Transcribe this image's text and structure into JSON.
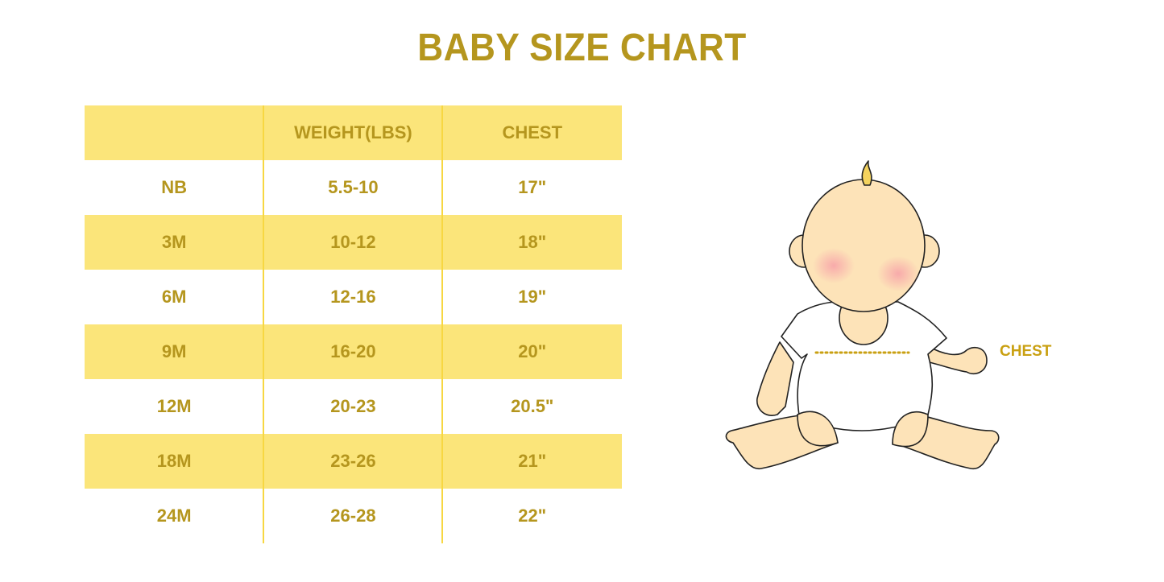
{
  "title": "BABY SIZE CHART",
  "table": {
    "headers": [
      "",
      "WEIGHT(LBS)",
      "CHEST"
    ],
    "rows": [
      [
        "NB",
        "5.5-10",
        "17\""
      ],
      [
        "3M",
        "10-12",
        "18\""
      ],
      [
        "6M",
        "12-16",
        "19\""
      ],
      [
        "9M",
        "16-20",
        "20\""
      ],
      [
        "12M",
        "20-23",
        "20.5\""
      ],
      [
        "18M",
        "23-26",
        "21\""
      ],
      [
        "24M",
        "26-28",
        "22\""
      ]
    ]
  },
  "illustration": {
    "label": "CHEST"
  },
  "colors": {
    "text": "#B5961E",
    "highlight_row": "#FBE57A",
    "divider": "#F7D742",
    "skin": "#FDE3B8"
  }
}
